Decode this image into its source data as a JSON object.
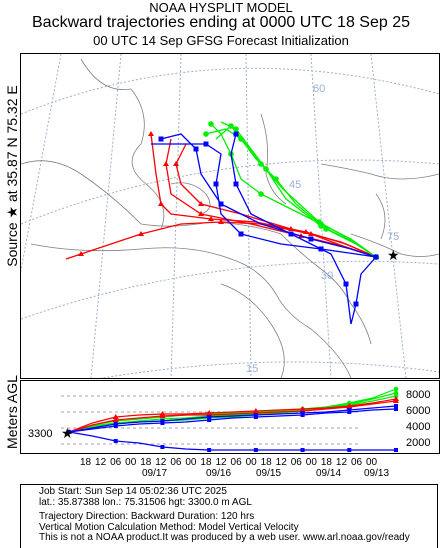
{
  "header": {
    "line1": "NOAA HYSPLIT MODEL",
    "line2": "Backward trajectories ending at 0000 UTC 18 Sep 25",
    "line3": "00 UTC 14 Sep    GFSG  Forecast Initialization"
  },
  "side_label": "Source ★ at   35.87 N   75.32 E",
  "vertical": {
    "axis_label": "Meters AGL",
    "start_height": "3300",
    "y_ticks": [
      "8000",
      "6000",
      "4000",
      "2000"
    ],
    "hour_ticks": [
      "18",
      "12",
      "06",
      "00",
      "18",
      "12",
      "06",
      "00",
      "18",
      "12",
      "06",
      "00",
      "18",
      "12",
      "06",
      "00",
      "18",
      "12",
      "06",
      "00"
    ],
    "date_ticks": [
      "09/17",
      "09/16",
      "09/15",
      "09/14",
      "09/13"
    ]
  },
  "map": {
    "lat_labels": [
      "60",
      "45",
      "30",
      "15"
    ],
    "lon_labels": [
      "75"
    ],
    "colors": {
      "red": "#ff0000",
      "blue": "#0000ff",
      "green": "#00ee00",
      "grid": "#9ab0d0",
      "coast": "#777777"
    }
  },
  "info": {
    "job_start": "Job Start: Sun Sep 14 05:02:36 UTC 2025",
    "location": "lat.: 35.87388   lon.: 75.31506    hgt: 3300.0 m AGL",
    "direction": "Trajectory Direction: Backward       Duration: 120 hrs",
    "vertical_motion": "Vertical Motion Calculation Method: Model Vertical Velocity",
    "disclaimer": "This is not a NOAA product.It was produced by a web user. www.arl.noaa.gov/ready"
  }
}
